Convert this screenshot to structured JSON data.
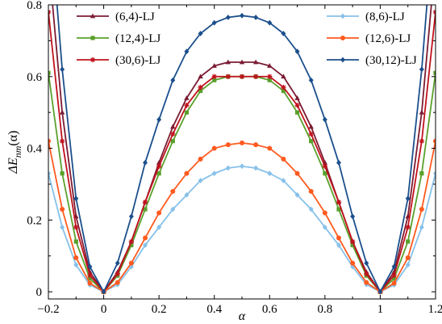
{
  "chart_data": {
    "type": "line",
    "xlabel": "α",
    "ylabel": {
      "prefix": "ΔE",
      "subscript": "nm",
      "suffix": "(α)"
    },
    "xlim": [
      -0.2,
      1.2
    ],
    "ylim": [
      -0.02,
      0.8
    ],
    "xticks": [
      "−0.2",
      "0",
      "0.2",
      "0.4",
      "0.6",
      "0.8",
      "1",
      "1.2"
    ],
    "yticks": [
      "0",
      "0.2",
      "0.4",
      "0.6",
      "0.8"
    ],
    "grid": false,
    "legend_placement": "top, two columns",
    "x": [
      -0.2,
      -0.15,
      -0.1,
      -0.05,
      0,
      0.05,
      0.1,
      0.15,
      0.2,
      0.25,
      0.3,
      0.35,
      0.4,
      0.45,
      0.5,
      0.55,
      0.6,
      0.65,
      0.7,
      0.75,
      0.8,
      0.85,
      0.9,
      0.95,
      1,
      1.05,
      1.1,
      1.15,
      1.2
    ],
    "series": [
      {
        "name": "(6,4)-LJ",
        "color": "#7b1c33",
        "marker": "triangle",
        "values": [
          0.93,
          0.5,
          0.21,
          0.055,
          0,
          0.055,
          0.14,
          0.25,
          0.36,
          0.46,
          0.54,
          0.6,
          0.63,
          0.64,
          0.64,
          0.64,
          0.63,
          0.6,
          0.54,
          0.46,
          0.36,
          0.25,
          0.14,
          0.055,
          0,
          0.055,
          0.21,
          0.5,
          0.93
        ]
      },
      {
        "name": "(12,4)-LJ",
        "color": "#5aa02c",
        "marker": "square",
        "values": [
          0.61,
          0.33,
          0.14,
          0.037,
          0,
          0.045,
          0.13,
          0.23,
          0.33,
          0.42,
          0.5,
          0.56,
          0.59,
          0.6,
          0.6,
          0.6,
          0.59,
          0.56,
          0.5,
          0.42,
          0.33,
          0.23,
          0.13,
          0.045,
          0,
          0.037,
          0.14,
          0.33,
          0.61
        ]
      },
      {
        "name": "(30,6)-LJ",
        "color": "#c0121d",
        "marker": "star",
        "values": [
          0.78,
          0.42,
          0.18,
          0.046,
          0,
          0.05,
          0.14,
          0.25,
          0.35,
          0.44,
          0.52,
          0.57,
          0.6,
          0.6,
          0.6,
          0.6,
          0.6,
          0.57,
          0.52,
          0.44,
          0.35,
          0.25,
          0.14,
          0.05,
          0,
          0.046,
          0.18,
          0.42,
          0.78
        ]
      },
      {
        "name": "(8,6)-LJ",
        "color": "#87c1e9",
        "marker": "diamond",
        "values": [
          0.33,
          0.18,
          0.075,
          0.019,
          0,
          0.02,
          0.07,
          0.13,
          0.18,
          0.23,
          0.27,
          0.31,
          0.33,
          0.345,
          0.35,
          0.345,
          0.33,
          0.31,
          0.27,
          0.23,
          0.18,
          0.13,
          0.07,
          0.02,
          0,
          0.019,
          0.075,
          0.18,
          0.33
        ]
      },
      {
        "name": "(12,6)-LJ",
        "color": "#ff5a1f",
        "marker": "circle",
        "values": [
          0.42,
          0.23,
          0.095,
          0.024,
          0,
          0.026,
          0.08,
          0.15,
          0.22,
          0.28,
          0.33,
          0.37,
          0.4,
          0.41,
          0.415,
          0.41,
          0.4,
          0.37,
          0.33,
          0.28,
          0.22,
          0.15,
          0.08,
          0.026,
          0,
          0.024,
          0.095,
          0.23,
          0.42
        ]
      },
      {
        "name": "(30,12)-LJ",
        "color": "#1b4f8c",
        "marker": "diamond",
        "values": [
          1.1,
          0.62,
          0.26,
          0.07,
          0,
          0.08,
          0.21,
          0.36,
          0.48,
          0.59,
          0.67,
          0.72,
          0.75,
          0.765,
          0.77,
          0.765,
          0.75,
          0.72,
          0.67,
          0.59,
          0.48,
          0.36,
          0.21,
          0.08,
          0,
          0.07,
          0.26,
          0.62,
          1.1
        ]
      }
    ]
  }
}
